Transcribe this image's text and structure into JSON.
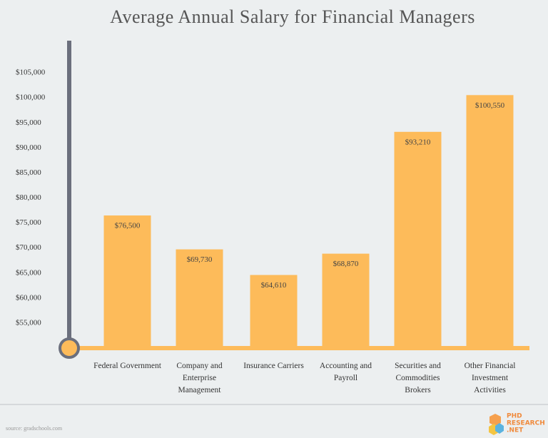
{
  "chart_data": {
    "type": "bar",
    "title": "Average Annual Salary for Financial Managers",
    "categories": [
      "Federal Government",
      "Company and Enterprise Management",
      "Insurance Carriers",
      "Accounting and Payroll",
      "Securities and Commodities Brokers",
      "Other Financial Investment Activities"
    ],
    "values": [
      76500,
      69730,
      64610,
      68870,
      93210,
      100550
    ],
    "value_labels": [
      "$76,500",
      "$69,730",
      "$64,610",
      "$68,870",
      "$93,210",
      "$100,550"
    ],
    "color": "#fdbb5a",
    "ylim": [
      50000,
      110000
    ],
    "yticks": [
      {
        "value": 55000,
        "label": "$55,000"
      },
      {
        "value": 60000,
        "label": "$60,000"
      },
      {
        "value": 65000,
        "label": "$65,000"
      },
      {
        "value": 70000,
        "label": "$70,000"
      },
      {
        "value": 75000,
        "label": "$75,000"
      },
      {
        "value": 80000,
        "label": "$80,000"
      },
      {
        "value": 85000,
        "label": "$85,000"
      },
      {
        "value": 90000,
        "label": "$90,000"
      },
      {
        "value": 95000,
        "label": "$95,000"
      },
      {
        "value": 100000,
        "label": "$100,000"
      },
      {
        "value": 105000,
        "label": "$105,000"
      }
    ],
    "grid": false,
    "source": "source: gradschools.com"
  },
  "logo": {
    "line1": "PHD",
    "line2": "RESEARCH",
    "line3": ".NET"
  }
}
